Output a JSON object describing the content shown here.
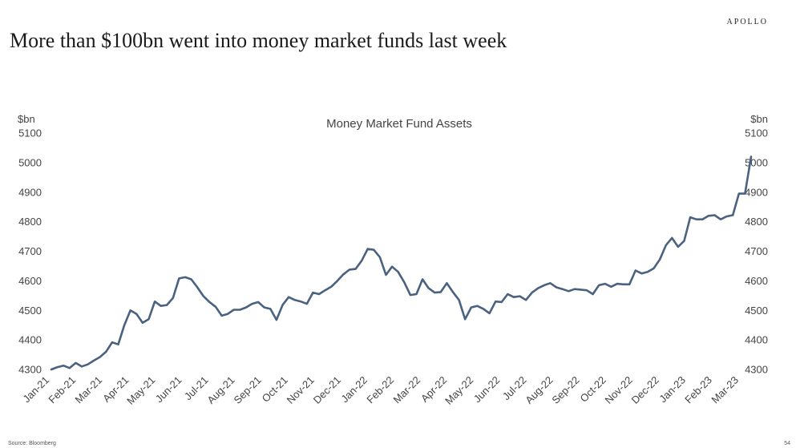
{
  "header": {
    "brand": "APOLLO",
    "headline": "More than $100bn went into money market funds last week"
  },
  "footer": {
    "source": "Source: Bloomberg",
    "page_number": "54"
  },
  "colors": {
    "line": "#4a6280",
    "text": "#444444"
  },
  "chart_data": {
    "type": "line",
    "title": "Money Market Fund Assets",
    "xlabel": "",
    "ylabel_left": "$bn",
    "ylabel_right": "$bn",
    "ylim": [
      4300,
      5100
    ],
    "yticks": [
      4300,
      4400,
      4500,
      4600,
      4700,
      4800,
      4900,
      5000,
      5100
    ],
    "grid": false,
    "x_tick_labels": [
      "Jan-21",
      "Feb-21",
      "Mar-21",
      "Apr-21",
      "May-21",
      "Jun-21",
      "Jul-21",
      "Aug-21",
      "Sep-21",
      "Oct-21",
      "Nov-21",
      "Dec-21",
      "Jan-22",
      "Feb-22",
      "Mar-22",
      "Apr-22",
      "May-22",
      "Jun-22",
      "Jul-22",
      "Aug-22",
      "Sep-22",
      "Oct-22",
      "Nov-22",
      "Dec-22",
      "Jan-23",
      "Feb-23",
      "Mar-23"
    ],
    "series": [
      {
        "values": [
          4300,
          4308,
          4313,
          4305,
          4322,
          4310,
          4317,
          4330,
          4342,
          4360,
          4392,
          4385,
          4450,
          4500,
          4488,
          4458,
          4470,
          4530,
          4515,
          4518,
          4542,
          4608,
          4612,
          4605,
          4578,
          4548,
          4528,
          4512,
          4482,
          4488,
          4502,
          4502,
          4510,
          4522,
          4528,
          4510,
          4505,
          4468,
          4518,
          4545,
          4535,
          4530,
          4522,
          4560,
          4555,
          4568,
          4580,
          4600,
          4622,
          4638,
          4640,
          4668,
          4708,
          4705,
          4680,
          4620,
          4648,
          4630,
          4595,
          4552,
          4555,
          4605,
          4575,
          4560,
          4562,
          4592,
          4562,
          4535,
          4470,
          4510,
          4515,
          4505,
          4490,
          4530,
          4528,
          4555,
          4545,
          4548,
          4535,
          4560,
          4575,
          4585,
          4592,
          4578,
          4572,
          4565,
          4572,
          4570,
          4568,
          4555,
          4585,
          4590,
          4580,
          4590,
          4588,
          4588,
          4635,
          4625,
          4630,
          4642,
          4672,
          4720,
          4745,
          4715,
          4735,
          4815,
          4808,
          4808,
          4820,
          4822,
          4808,
          4818,
          4822,
          4895,
          4895,
          5020
        ]
      }
    ]
  }
}
